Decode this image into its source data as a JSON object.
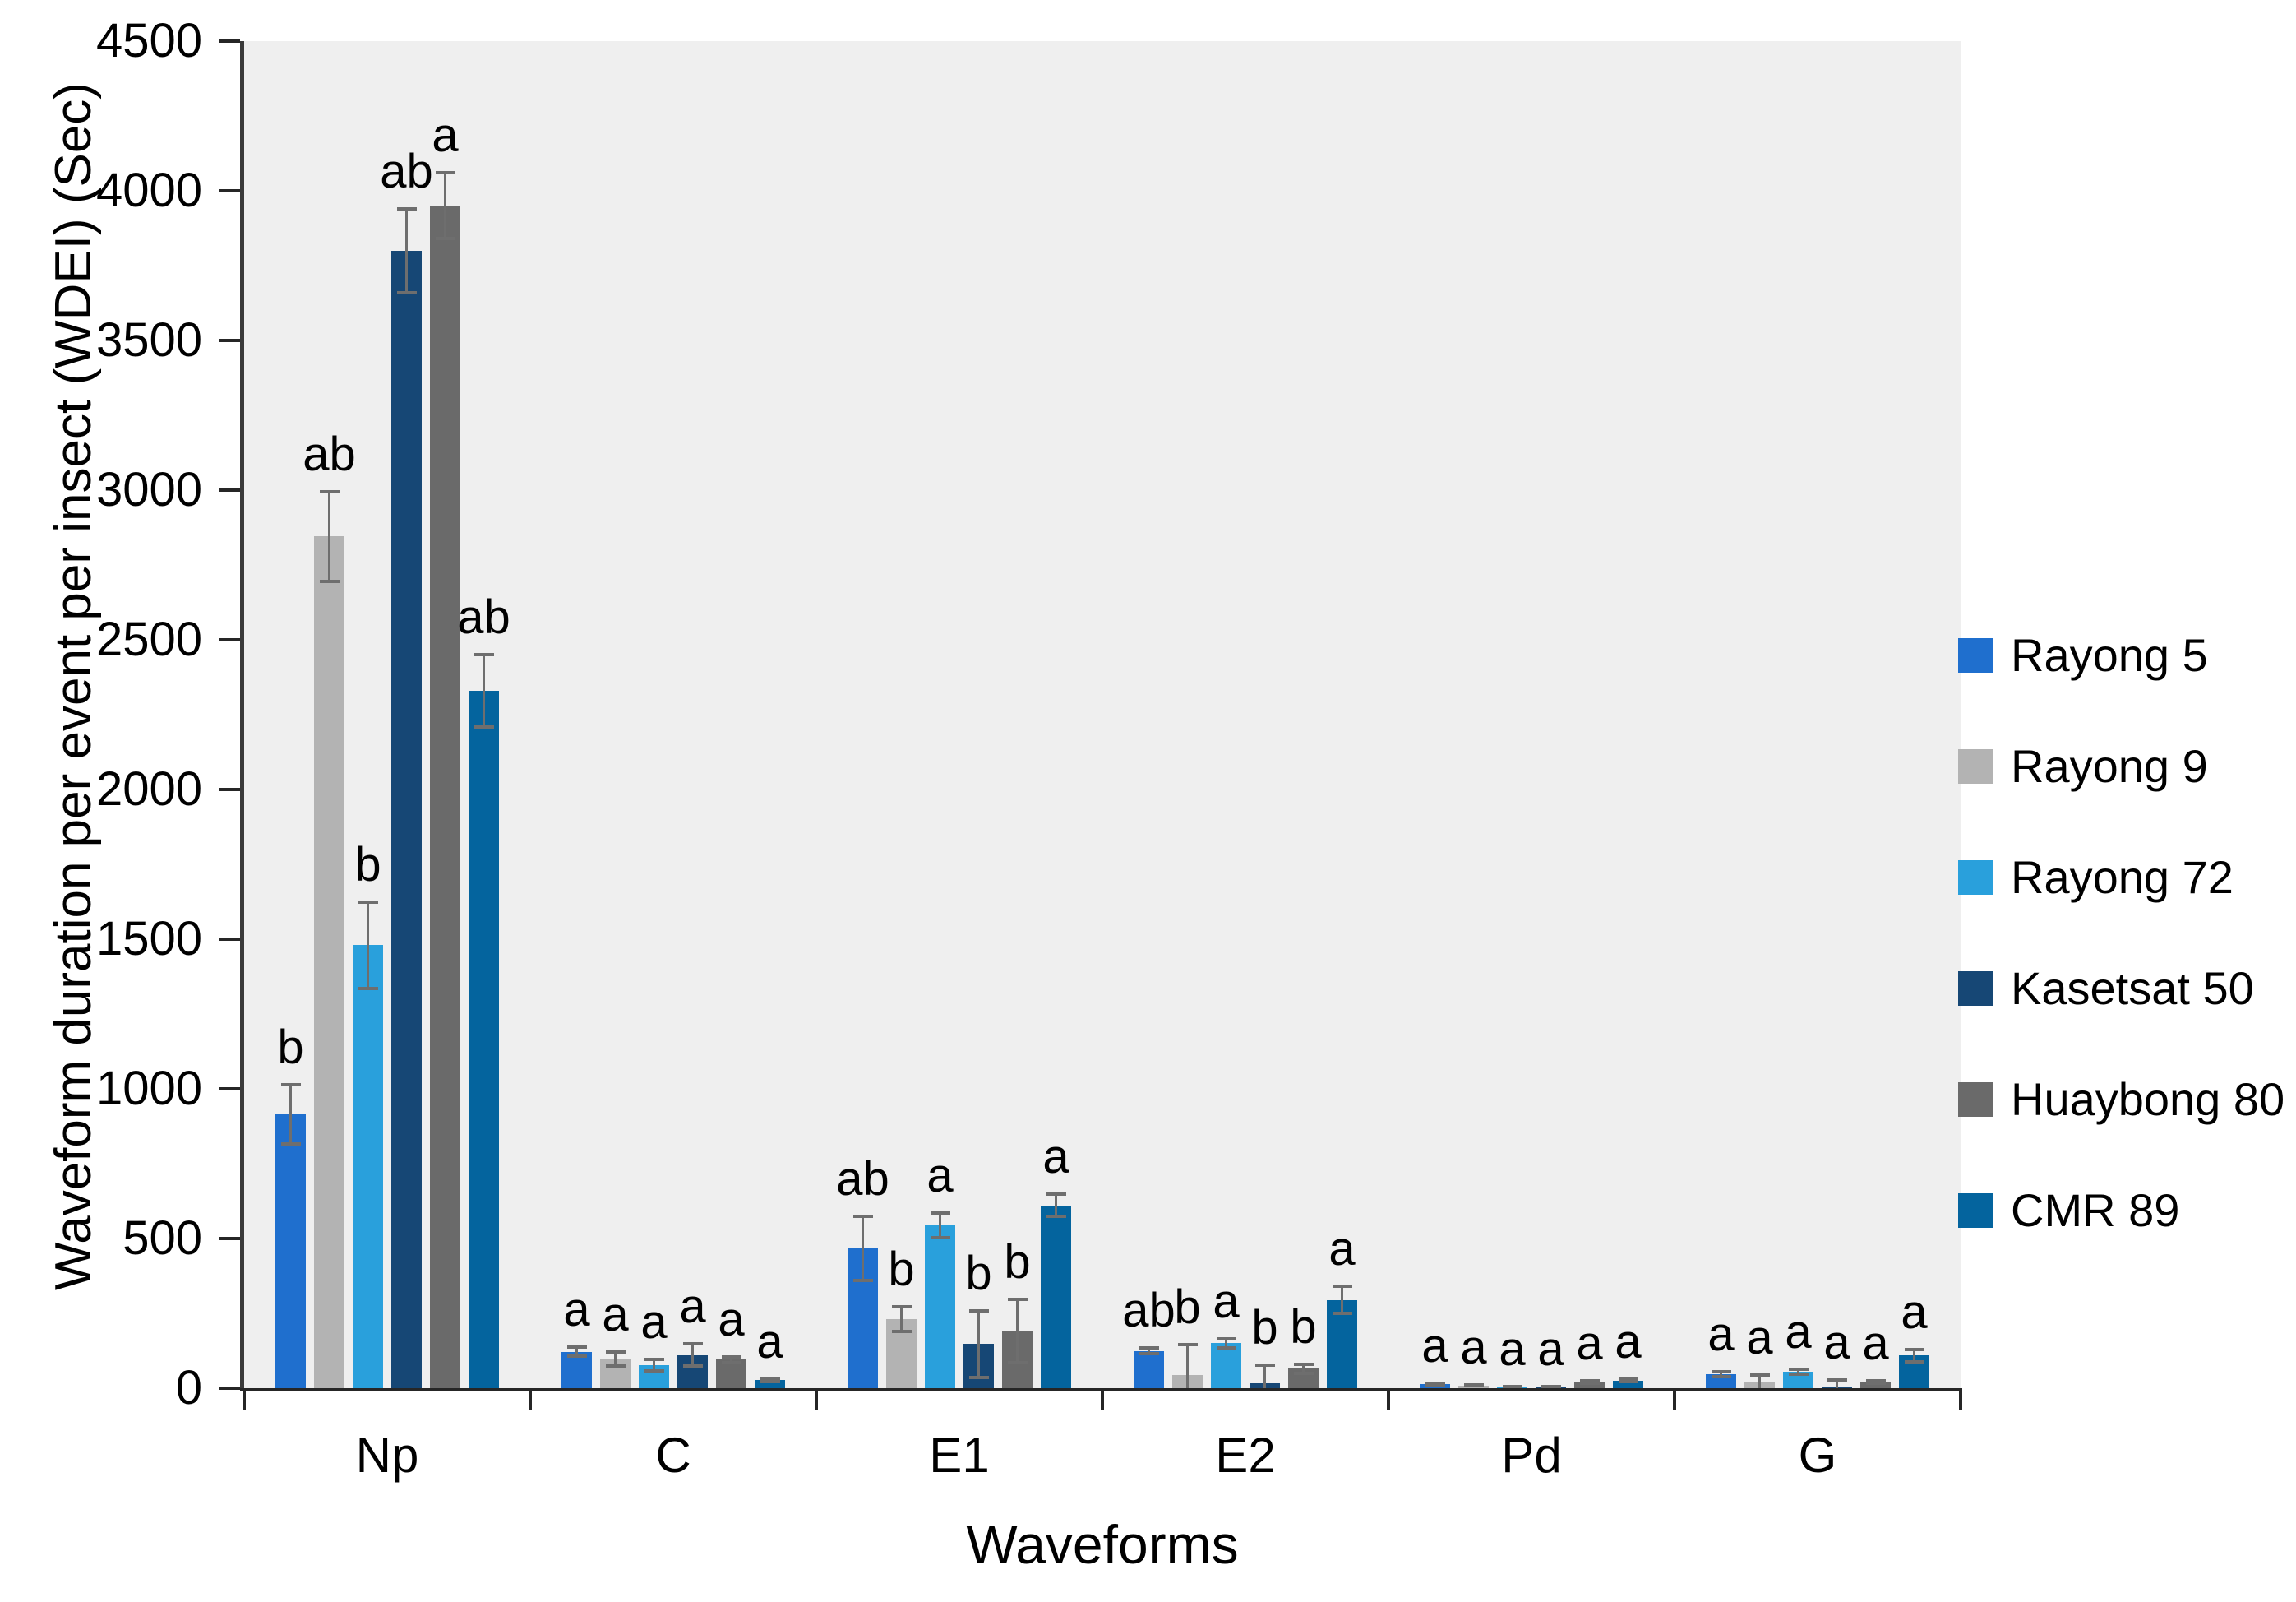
{
  "figure": {
    "y_axis_title": "Waveform duration per event per insect (WDEI) (Sec)",
    "x_axis_title": "Waveforms"
  },
  "chart_data": {
    "type": "bar",
    "title": "",
    "xlabel": "Waveforms",
    "ylabel": "Waveform duration per event per insect (WDEI) (Sec)",
    "categories": [
      "Np",
      "C",
      "E1",
      "E2",
      "Pd",
      "G"
    ],
    "series": [
      {
        "name": "Rayong 5",
        "color": "#1F6FCE",
        "values": [
          915,
          122,
          467,
          125,
          13,
          46
        ],
        "errors": [
          100,
          16,
          108,
          10,
          4,
          8
        ],
        "letters": [
          "b",
          "a",
          "ab",
          "ab",
          "a",
          "a"
        ]
      },
      {
        "name": "Rayong 9",
        "color": "#B3B3B3",
        "values": [
          2845,
          98,
          231,
          45,
          8,
          18
        ],
        "errors": [
          150,
          24,
          41,
          100,
          3,
          25
        ],
        "letters": [
          "ab",
          "a",
          "b",
          "b",
          "a",
          "a"
        ]
      },
      {
        "name": "Rayong 72",
        "color": "#29A0DC",
        "values": [
          1480,
          76,
          543,
          150,
          4,
          55
        ],
        "errors": [
          145,
          19,
          41,
          15,
          2,
          8
        ],
        "letters": [
          "b",
          "a",
          "a",
          "a",
          "a",
          "a"
        ]
      },
      {
        "name": "Kasetsat 50",
        "color": "#164775",
        "values": [
          3800,
          111,
          147,
          16,
          4,
          5
        ],
        "errors": [
          140,
          38,
          112,
          60,
          2,
          22
        ],
        "letters": [
          "ab",
          "a",
          "b",
          "b",
          "a",
          "a"
        ]
      },
      {
        "name": "Huaybong 80",
        "color": "#6A6A6A",
        "values": [
          3950,
          95,
          190,
          65,
          21,
          21
        ],
        "errors": [
          110,
          9,
          106,
          15,
          4,
          4
        ],
        "letters": [
          "a",
          "a",
          "b",
          "b",
          "a",
          "a"
        ]
      },
      {
        "name": "CMR 89",
        "color": "#04649E",
        "values": [
          2330,
          27,
          611,
          295,
          26,
          109
        ],
        "errors": [
          120,
          4,
          38,
          45,
          4,
          21
        ],
        "letters": [
          "ab",
          "a",
          "a",
          "a",
          "a",
          "a"
        ]
      }
    ],
    "ylim": [
      0,
      4500
    ],
    "yticks": [
      "0",
      "500",
      "1000",
      "1500",
      "2000",
      "2500",
      "3000",
      "3500",
      "4000",
      "4500"
    ],
    "grid": false,
    "legend_position": "right",
    "plot_bg": "#EFEFEF",
    "axis_color": "#262626",
    "error_bar_color": "#6e6e6e"
  }
}
